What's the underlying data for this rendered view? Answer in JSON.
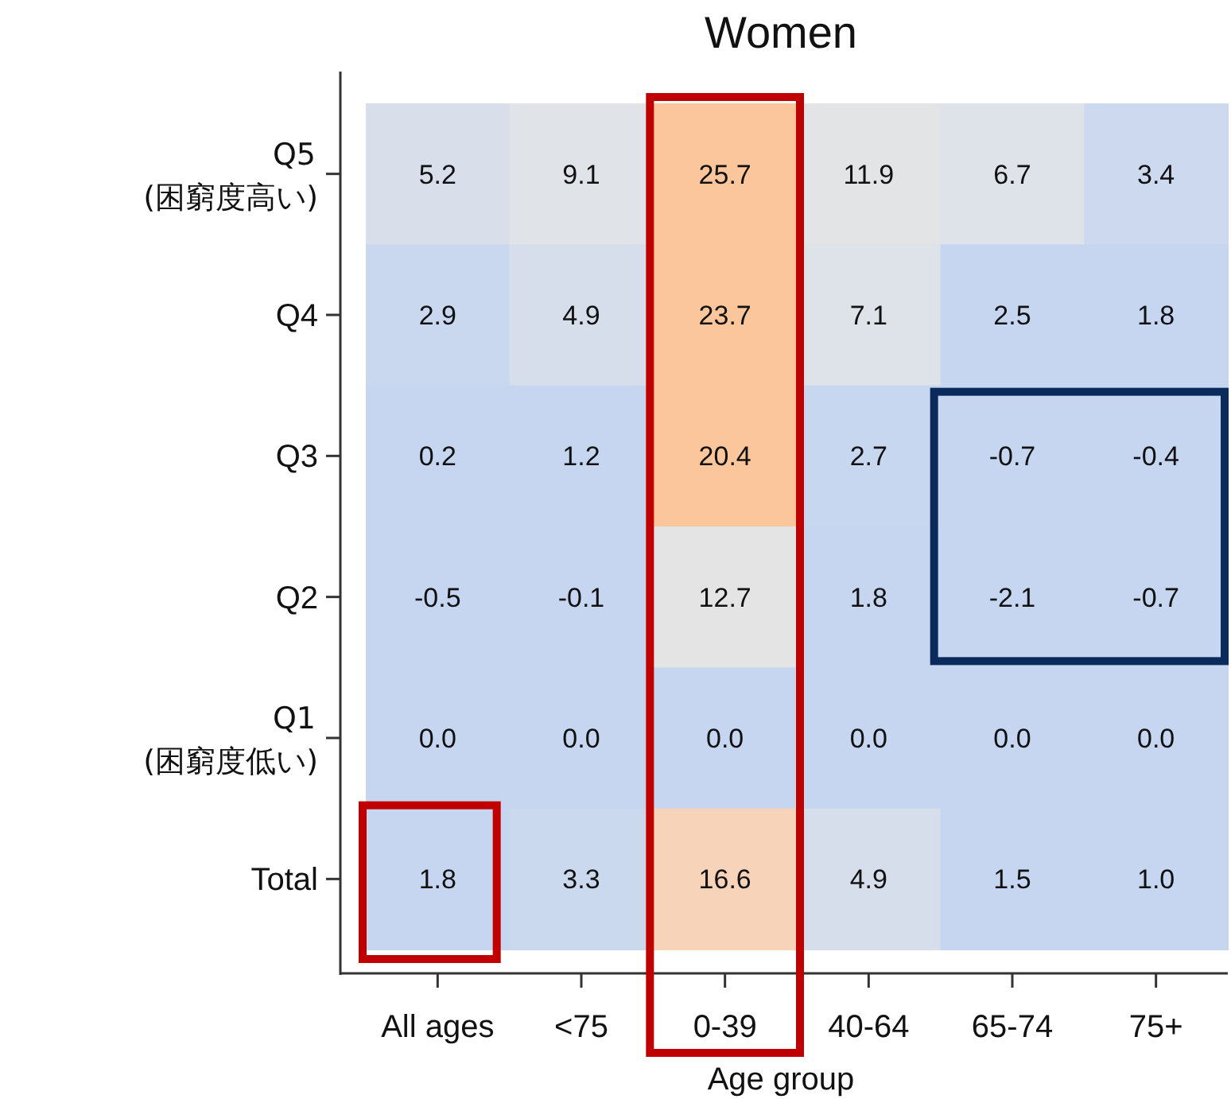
{
  "chart_data": {
    "type": "heatmap",
    "title": "Women",
    "xlabel": "Age group",
    "categories": [
      "All ages",
      "<75",
      "0-39",
      "40-64",
      "65-74",
      "75+"
    ],
    "y_categories": [
      "Q5 (困窮度高い)",
      "Q4",
      "Q3",
      "Q2",
      "Q1 (困窮度低い)",
      "Total"
    ],
    "cells": [
      [
        5.2,
        9.1,
        25.7,
        11.9,
        6.7,
        3.4
      ],
      [
        2.9,
        4.9,
        23.7,
        7.1,
        2.5,
        1.8
      ],
      [
        0.2,
        1.2,
        20.4,
        2.7,
        -0.7,
        -0.4
      ],
      [
        -0.5,
        -0.1,
        12.7,
        1.8,
        -2.1,
        -0.7
      ],
      [
        0.0,
        0.0,
        0.0,
        0.0,
        0.0,
        0.0
      ],
      [
        1.8,
        3.3,
        16.6,
        4.9,
        1.5,
        1.0
      ]
    ],
    "cell_labels": [
      [
        "5.2",
        "9.1",
        "25.7",
        "11.9",
        "6.7",
        "3.4"
      ],
      [
        "2.9",
        "4.9",
        "23.7",
        "7.1",
        "2.5",
        "1.8"
      ],
      [
        "0.2",
        "1.2",
        "20.4",
        "2.7",
        "-0.7",
        "-0.4"
      ],
      [
        "-0.5",
        "-0.1",
        "12.7",
        "1.8",
        "-2.1",
        "-0.7"
      ],
      [
        "0.0",
        "0.0",
        "0.0",
        "0.0",
        "0.0",
        "0.0"
      ],
      [
        "1.8",
        "3.3",
        "16.6",
        "4.9",
        "1.5",
        "1.0"
      ]
    ]
  }
}
